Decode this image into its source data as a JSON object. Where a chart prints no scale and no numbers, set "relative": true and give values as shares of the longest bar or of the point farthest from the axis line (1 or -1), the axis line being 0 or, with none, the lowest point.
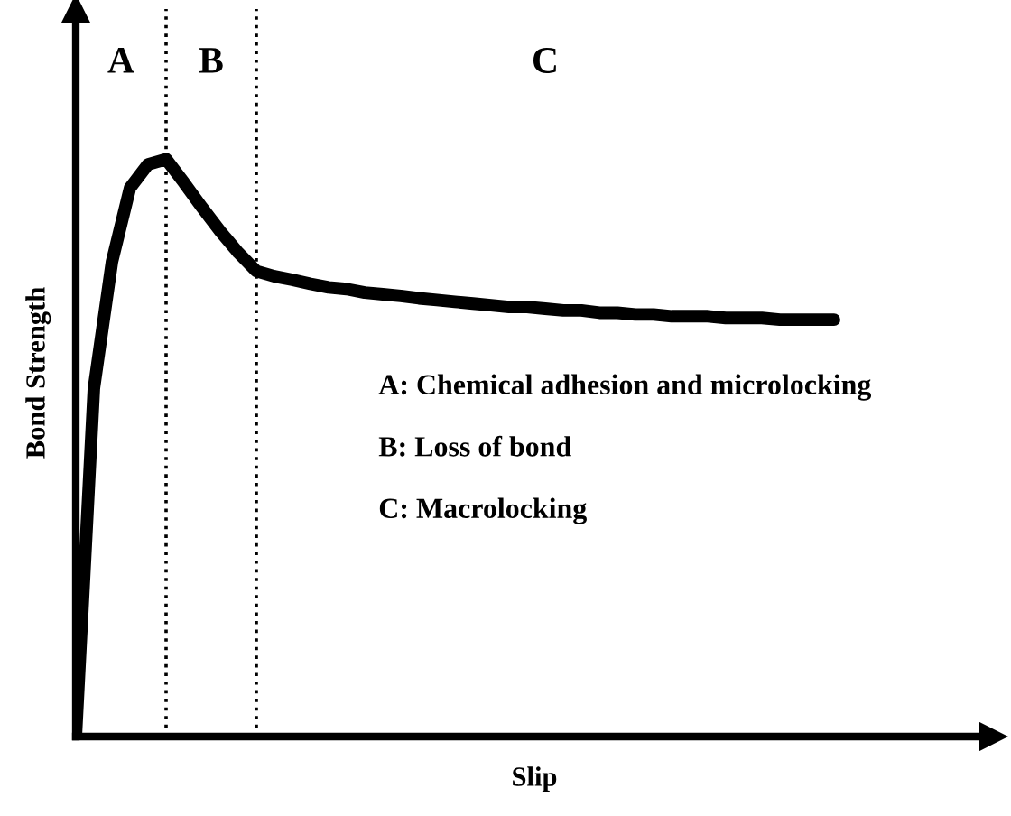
{
  "chart_data": {
    "type": "line",
    "relative": true,
    "xlabel": "Slip",
    "ylabel": "Bond Strength",
    "categories": [
      null,
      null,
      null,
      null,
      null,
      null,
      null,
      null,
      null,
      null,
      null,
      null,
      null,
      null,
      null,
      null,
      null,
      null,
      null,
      null,
      null,
      null,
      null,
      null,
      null,
      null,
      null,
      null,
      null,
      null,
      null,
      null,
      null,
      null,
      null,
      null,
      null,
      null,
      null,
      null,
      null,
      null,
      null
    ],
    "series": [
      {
        "color": "#000000",
        "values": [
          0,
          0.603,
          0.822,
          0.95,
          0.991,
          1,
          0.959,
          0.916,
          0.875,
          0.838,
          0.806,
          0.797,
          0.791,
          0.784,
          0.778,
          0.775,
          0.769,
          0.766,
          0.763,
          0.759,
          0.756,
          0.753,
          0.75,
          0.747,
          0.744,
          0.744,
          0.741,
          0.738,
          0.738,
          0.734,
          0.734,
          0.731,
          0.731,
          0.728,
          0.728,
          0.728,
          0.725,
          0.725,
          0.725,
          0.722,
          0.722,
          0.722,
          0.722
        ]
      }
    ],
    "annotations": [
      "A",
      "B",
      "C",
      "A: Chemical adhesion and microlocking",
      "B: Loss of bond",
      "C: Macrolocking"
    ]
  }
}
